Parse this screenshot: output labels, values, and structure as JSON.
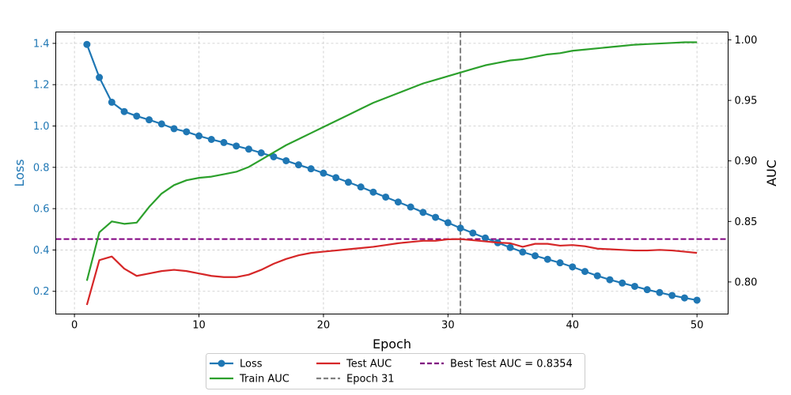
{
  "chart_data": {
    "type": "line",
    "xlabel": "Epoch",
    "ylabel_left": "Loss",
    "ylabel_right": "AUC",
    "xlim": [
      -1.5,
      52.5
    ],
    "ylim_left": [
      0.09,
      1.455
    ],
    "ylim_right": [
      0.7735,
      1.0065
    ],
    "xticks": [
      0,
      10,
      20,
      30,
      40,
      50
    ],
    "yticks_left": [
      0.2,
      0.4,
      0.6,
      0.8,
      1.0,
      1.2,
      1.4
    ],
    "yticks_right": [
      0.8,
      0.85,
      0.9,
      0.95,
      1.0
    ],
    "ytick_labels_left": [
      "0.2",
      "0.4",
      "0.6",
      "0.8",
      "1.0",
      "1.2",
      "1.4"
    ],
    "ytick_labels_right": [
      "0.80",
      "0.85",
      "0.90",
      "0.95",
      "1.00"
    ],
    "grid": true,
    "legend_position": "bottom-center",
    "x": [
      1,
      2,
      3,
      4,
      5,
      6,
      7,
      8,
      9,
      10,
      11,
      12,
      13,
      14,
      15,
      16,
      17,
      18,
      19,
      20,
      21,
      22,
      23,
      24,
      25,
      26,
      27,
      28,
      29,
      30,
      31,
      32,
      33,
      34,
      35,
      36,
      37,
      38,
      39,
      40,
      41,
      42,
      43,
      44,
      45,
      46,
      47,
      48,
      49,
      50
    ],
    "series": [
      {
        "name": "Loss",
        "axis": "left",
        "color": "#1f77b4",
        "marker": "circle",
        "values": [
          1.395,
          1.235,
          1.115,
          1.07,
          1.048,
          1.03,
          1.01,
          0.987,
          0.972,
          0.952,
          0.935,
          0.92,
          0.903,
          0.888,
          0.87,
          0.851,
          0.832,
          0.812,
          0.793,
          0.772,
          0.75,
          0.728,
          0.705,
          0.68,
          0.656,
          0.632,
          0.608,
          0.582,
          0.558,
          0.532,
          0.506,
          0.482,
          0.458,
          0.435,
          0.412,
          0.39,
          0.372,
          0.355,
          0.338,
          0.318,
          0.296,
          0.275,
          0.256,
          0.24,
          0.224,
          0.208,
          0.194,
          0.18,
          0.168,
          0.157
        ]
      },
      {
        "name": "Train AUC",
        "axis": "right",
        "color": "#2ca02c",
        "values": [
          0.801,
          0.841,
          0.85,
          0.848,
          0.849,
          0.862,
          0.873,
          0.88,
          0.884,
          0.886,
          0.887,
          0.889,
          0.891,
          0.895,
          0.901,
          0.907,
          0.913,
          0.918,
          0.923,
          0.928,
          0.933,
          0.938,
          0.943,
          0.948,
          0.952,
          0.956,
          0.96,
          0.964,
          0.967,
          0.97,
          0.973,
          0.976,
          0.979,
          0.981,
          0.983,
          0.984,
          0.986,
          0.988,
          0.989,
          0.991,
          0.992,
          0.993,
          0.994,
          0.995,
          0.996,
          0.9965,
          0.997,
          0.9975,
          0.998,
          0.998
        ]
      },
      {
        "name": "Test AUC",
        "axis": "right",
        "color": "#d62728",
        "values": [
          0.781,
          0.818,
          0.821,
          0.811,
          0.805,
          0.807,
          0.809,
          0.81,
          0.809,
          0.807,
          0.805,
          0.804,
          0.804,
          0.806,
          0.81,
          0.815,
          0.819,
          0.822,
          0.824,
          0.825,
          0.826,
          0.827,
          0.828,
          0.829,
          0.8305,
          0.832,
          0.833,
          0.834,
          0.834,
          0.8352,
          0.8354,
          0.8345,
          0.8335,
          0.8325,
          0.832,
          0.829,
          0.8315,
          0.8315,
          0.83,
          0.8305,
          0.8295,
          0.8275,
          0.827,
          0.8265,
          0.826,
          0.826,
          0.8265,
          0.826,
          0.825,
          0.824
        ]
      }
    ],
    "reference_lines": [
      {
        "name": "Epoch 31",
        "orientation": "vertical",
        "axis": "x",
        "value": 31,
        "color": "#808080",
        "style": "dashed"
      },
      {
        "name": "Best Test AUC = 0.8354",
        "orientation": "horizontal",
        "axis": "right",
        "value": 0.8354,
        "color": "#800080",
        "style": "dashed"
      }
    ]
  }
}
